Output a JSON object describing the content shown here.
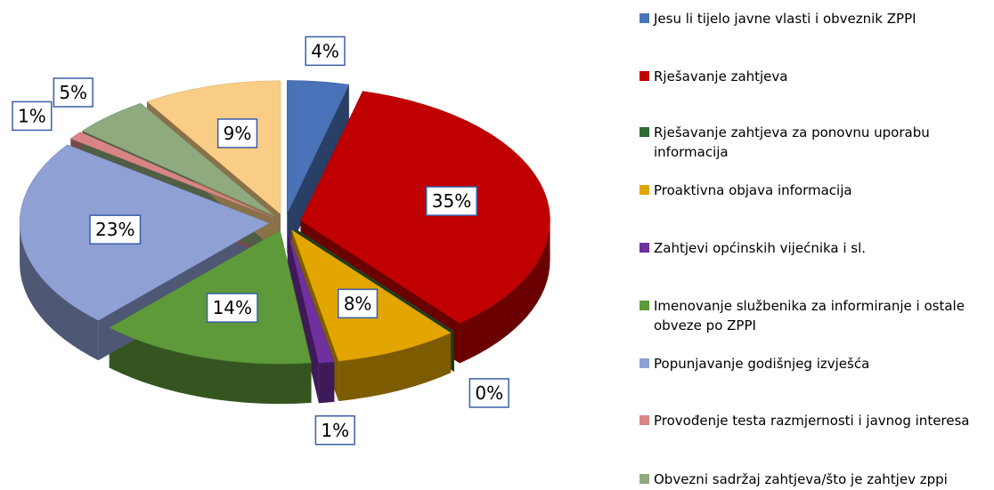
{
  "chart_data": {
    "type": "pie",
    "categories": [
      "Jesu li tijelo javne vlasti i obveznik ZPPI",
      "Rješavanje zahtjeva",
      "Rješavanje zahtjeva za ponovnu uporabu informacija",
      "Proaktivna objava informacija",
      "Zahtjevi općinskih vijećnika i sl.",
      "Imenovanje službenika za informiranje i ostale obveze po ZPPI",
      "Popunjavanje godišnjeg izvješća",
      "Provođenje testa razmjernosti i javnog interesa",
      "Obvezni sadržaj zahtjeva/što je zahtjev zppi",
      null
    ],
    "values": [
      4,
      35,
      0,
      8,
      1,
      14,
      23,
      1,
      5,
      9
    ],
    "value_labels": [
      "4%",
      "35%",
      "0%",
      "8%",
      "1%",
      "14%",
      "23%",
      "1%",
      "5%",
      "9%"
    ],
    "colors": [
      "#4a72b8",
      "#c00000",
      "#2f6b30",
      "#e3a600",
      "#7030a0",
      "#5e9a3a",
      "#8ea0d4",
      "#d98585",
      "#8faa7e",
      "#f9cd85"
    ],
    "legend": "right"
  }
}
